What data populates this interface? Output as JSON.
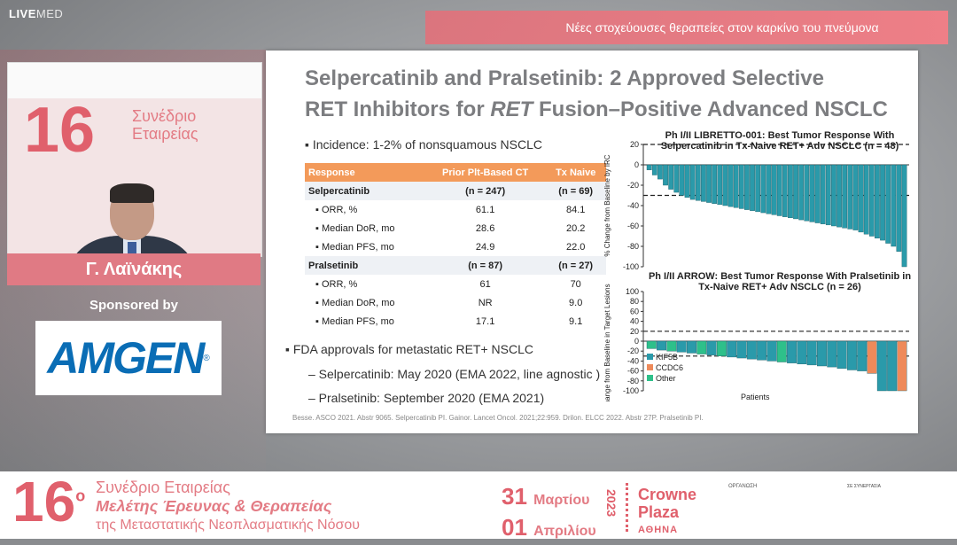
{
  "brand": {
    "live": "LIVE",
    "med": "MED"
  },
  "header": {
    "session_title": "Νέες στοχεύουσες θεραπείες στον καρκίνο του πνεύμονα"
  },
  "video": {
    "number": "16",
    "conference": "Συνέδριο Εταιρείας"
  },
  "speaker": {
    "name": "Γ. Λαϊνάκης"
  },
  "sponsor": {
    "label": "Sponsored by",
    "name": "AMGEN",
    "mark": "®"
  },
  "slide": {
    "title_line1": "Selpercatinib and Pralsetinib: 2 Approved Selective",
    "title_line2_a": "RET Inhibitors for ",
    "title_line2_b": "RET",
    "title_line2_c": " Fusion–Positive Advanced NSCLC",
    "bullet1": "▪  Incidence: 1-2% of nonsquamous NSCLC",
    "table": {
      "headers": [
        "Response",
        "Prior Plt-Based CT",
        "Tx Naive"
      ],
      "rows": [
        {
          "label": "Selpercatinib",
          "a": "(n = 247)",
          "b": "(n = 69)",
          "section": true
        },
        {
          "label": "▪  ORR, %",
          "a": "61.1",
          "b": "84.1"
        },
        {
          "label": "▪  Median DoR, mo",
          "a": "28.6",
          "b": "20.2"
        },
        {
          "label": "▪  Median PFS, mo",
          "a": "24.9",
          "b": "22.0"
        },
        {
          "label": "Pralsetinib",
          "a": "(n = 87)",
          "b": "(n = 27)",
          "section": true
        },
        {
          "label": "▪  ORR, %",
          "a": "61",
          "b": "70"
        },
        {
          "label": "▪  Median DoR, mo",
          "a": "NR",
          "b": "9.0"
        },
        {
          "label": "▪  Median PFS, mo",
          "a": "17.1",
          "b": "9.1"
        }
      ]
    },
    "bullet2": "▪  FDA approvals for metastatic RET+ NSCLC",
    "sub1": "–  Selpercatinib: May 2020 (EMA 2022, line agnostic )",
    "sub2": "–  Pralsetinib: September 2020 (EMA 2021)",
    "reference": "Besse. ASCO 2021. Abstr 9065. Selpercatinib PI. Gainor. Lancet Oncol. 2021;22:959. Drilon. ELCC 2022. Abstr 27P. Pralsetinib PI."
  },
  "chart_data": [
    {
      "type": "bar",
      "title": "Ph I/II LIBRETTO-001: Best Tumor Response With Selpercatinib in Tx-Naive RET+ Adv NSCLC (n = 48)",
      "ylabel": "% Change from Baseline by IRC",
      "ylim": [
        -100,
        20
      ],
      "yticks": [
        20,
        0,
        -20,
        -40,
        -60,
        -80,
        -100
      ],
      "reference_lines": [
        20,
        -30
      ],
      "color": "#2a9aaa",
      "values": [
        -5,
        -10,
        -14,
        -20,
        -24,
        -27,
        -30,
        -32,
        -34,
        -35,
        -36,
        -37,
        -38,
        -39,
        -40,
        -41,
        -42,
        -43,
        -44,
        -45,
        -46,
        -47,
        -48,
        -49,
        -50,
        -51,
        -52,
        -53,
        -54,
        -55,
        -56,
        -57,
        -58,
        -59,
        -60,
        -61,
        -62,
        -63,
        -64,
        -66,
        -68,
        -70,
        -72,
        -74,
        -77,
        -80,
        -85,
        -100
      ]
    },
    {
      "type": "bar",
      "title": "Ph I/II ARROW: Best Tumor Response With Pralsetinib in Tx-Naive RET+ Adv NSCLC (n = 26)",
      "ylabel": "Maximum Change from Baseline in Target Lesions Diameter (%)",
      "xlabel": "Patients",
      "ylim": [
        -100,
        100
      ],
      "yticks": [
        100,
        80,
        60,
        40,
        20,
        0,
        -20,
        -40,
        -60,
        -80,
        -100
      ],
      "reference_lines": [
        20,
        -30
      ],
      "legend": [
        {
          "name": "KIF5B",
          "color": "#2a9aaa"
        },
        {
          "name": "CCDC6",
          "color": "#ee8a5a"
        },
        {
          "name": "Other",
          "color": "#2ec08a"
        }
      ],
      "values": [
        -15,
        -18,
        -20,
        -22,
        -24,
        -26,
        -28,
        -30,
        -32,
        -34,
        -36,
        -38,
        -40,
        -42,
        -44,
        -46,
        -48,
        -50,
        -52,
        -55,
        -58,
        -60,
        -65,
        -100,
        -100,
        -100
      ],
      "groups": [
        "Other",
        "KIF5B",
        "Other",
        "KIF5B",
        "KIF5B",
        "Other",
        "KIF5B",
        "Other",
        "KIF5B",
        "KIF5B",
        "KIF5B",
        "KIF5B",
        "KIF5B",
        "Other",
        "KIF5B",
        "KIF5B",
        "KIF5B",
        "KIF5B",
        "KIF5B",
        "KIF5B",
        "KIF5B",
        "KIF5B",
        "CCDC6",
        "KIF5B",
        "KIF5B",
        "CCDC6"
      ]
    }
  ],
  "footer": {
    "number": "16",
    "ordinal": "ο",
    "line1": "Συνέδριο Εταιρείας",
    "line2": "Μελέτης Έρευνας & Θεραπείας",
    "line3": "της Μεταστατικής Νεοπλασματικής Νόσου",
    "day1": "31",
    "month1": "Μαρτίου",
    "day2": "01",
    "month2": "Απριλίου",
    "year": "2023",
    "venue1": "Crowne",
    "venue2": "Plaza",
    "city": "ΑΘΗΝΑ",
    "org_label": "ΟΡΓΑΝΩΣΗ",
    "partner_label": "ΣΕ ΣΥΝΕΡΓΑΣΙΑ"
  }
}
